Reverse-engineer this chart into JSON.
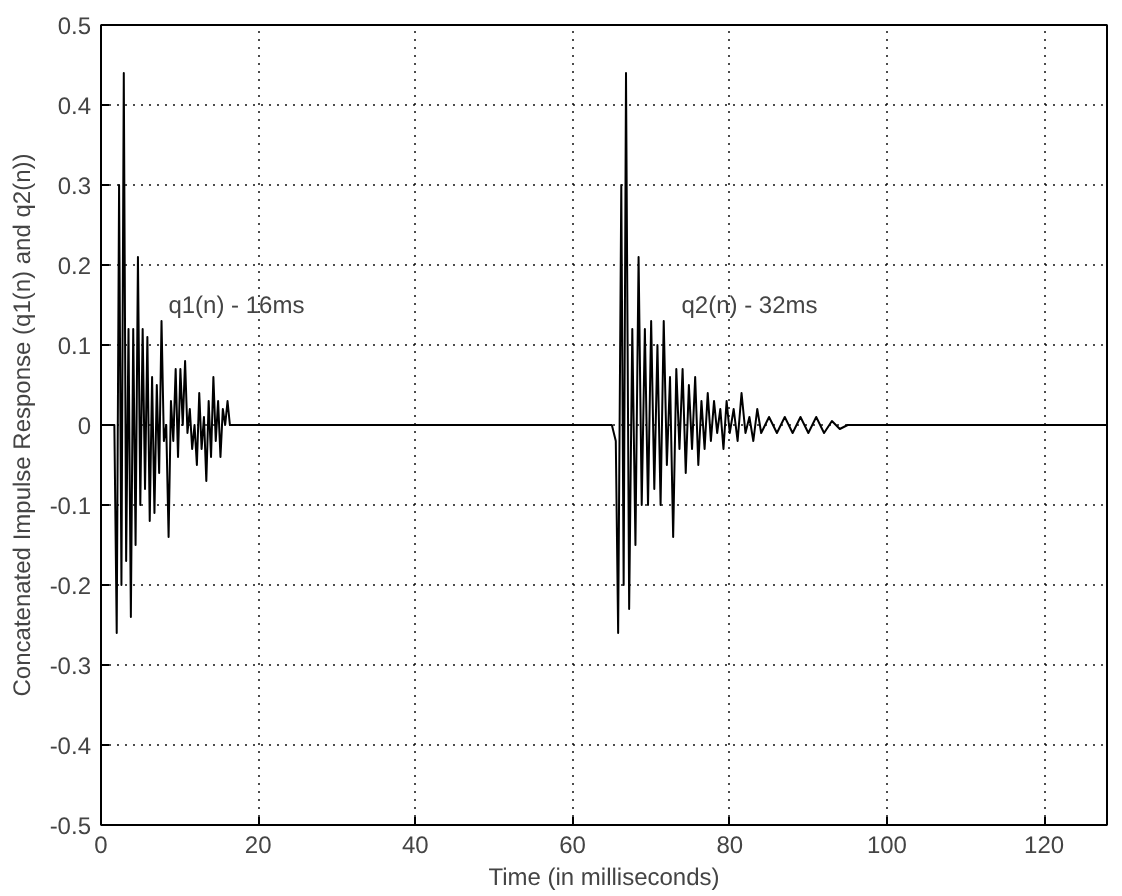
{
  "chart_data": {
    "type": "line",
    "xlabel": "Time (in milliseconds)",
    "ylabel": "Concatenated Impulse Response (q1(n) and q2(n))",
    "xlim": [
      0,
      128
    ],
    "ylim": [
      -0.5,
      0.5
    ],
    "xticks": [
      0,
      20,
      40,
      60,
      80,
      100,
      120
    ],
    "yticks": [
      -0.5,
      -0.4,
      -0.3,
      -0.2,
      -0.1,
      0,
      0.1,
      0.2,
      0.3,
      0.4,
      0.5
    ],
    "grid": true,
    "line_style": "solid",
    "annotations": [
      "q1(n) - 16ms",
      "q2(n) - 32ms"
    ],
    "series": [
      {
        "color": "#000000",
        "x": [
          0,
          1.7,
          2.0,
          2.3,
          2.6,
          2.9,
          3.2,
          3.5,
          3.8,
          4.1,
          4.4,
          4.7,
          5.0,
          5.3,
          5.6,
          5.9,
          6.2,
          6.5,
          6.8,
          7.1,
          7.4,
          7.7,
          8.0,
          8.3,
          8.6,
          8.9,
          9.2,
          9.5,
          9.8,
          10.1,
          10.4,
          10.7,
          11.0,
          11.3,
          11.6,
          11.9,
          12.2,
          12.5,
          12.8,
          13.1,
          13.4,
          13.7,
          14.0,
          14.3,
          14.6,
          14.9,
          15.2,
          15.5,
          15.8,
          16.1,
          16.4,
          65.0,
          65.5,
          65.8,
          66.2,
          66.5,
          66.8,
          67.2,
          67.6,
          68.0,
          68.4,
          68.8,
          69.2,
          69.6,
          70.0,
          70.4,
          70.8,
          71.2,
          71.6,
          72.0,
          72.4,
          72.8,
          73.2,
          73.6,
          74.0,
          74.4,
          74.8,
          75.2,
          75.6,
          76.0,
          76.4,
          76.8,
          77.2,
          77.6,
          78.0,
          78.4,
          78.8,
          79.2,
          79.6,
          80.0,
          80.5,
          81.0,
          81.5,
          82.0,
          82.5,
          83.0,
          83.5,
          84.0,
          85.0,
          86.0,
          87.0,
          88.0,
          89.0,
          90.0,
          91.0,
          92.0,
          93.0,
          94.0,
          95.0,
          128
        ],
        "values": [
          0,
          0,
          -0.26,
          0.3,
          -0.2,
          0.44,
          -0.17,
          0.12,
          -0.24,
          0.12,
          -0.15,
          0.21,
          -0.1,
          0.12,
          -0.08,
          0.11,
          -0.12,
          0.06,
          -0.11,
          0.05,
          -0.06,
          0.13,
          -0.02,
          0.0,
          -0.14,
          0.03,
          -0.02,
          0.07,
          -0.04,
          0.07,
          0.0,
          0.08,
          -0.01,
          0.02,
          -0.03,
          0.0,
          -0.05,
          0.04,
          -0.03,
          0.01,
          -0.07,
          0.03,
          -0.04,
          0.06,
          -0.02,
          0.03,
          -0.04,
          0.02,
          0.0,
          0.03,
          0,
          0,
          -0.02,
          -0.26,
          0.3,
          -0.2,
          0.44,
          -0.23,
          0.12,
          -0.15,
          0.21,
          -0.1,
          0.12,
          -0.1,
          0.13,
          -0.08,
          0.1,
          -0.1,
          0.13,
          -0.05,
          0.06,
          -0.14,
          0.07,
          -0.03,
          0.07,
          -0.06,
          0.05,
          -0.03,
          0.06,
          -0.05,
          0.03,
          -0.03,
          0.04,
          -0.02,
          0.03,
          -0.01,
          0.02,
          -0.03,
          0.03,
          -0.01,
          0.02,
          -0.02,
          0.04,
          -0.01,
          0.01,
          -0.02,
          0.02,
          -0.01,
          0.01,
          -0.01,
          0.01,
          -0.01,
          0.01,
          -0.01,
          0.01,
          -0.01,
          0.005,
          -0.005,
          0,
          0
        ]
      }
    ]
  }
}
